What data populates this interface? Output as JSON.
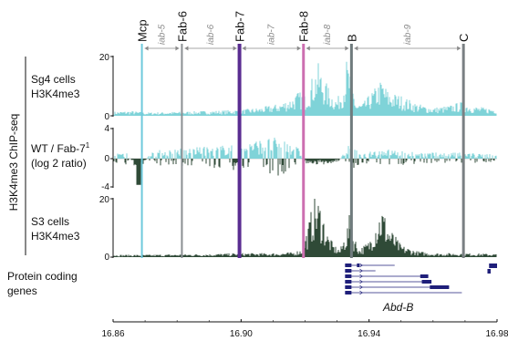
{
  "chart_data": {
    "type": "area",
    "y_axis_title": "H3K4me3 ChIP-seq",
    "x_ticks": [
      "16.86",
      "16.90",
      "16.94",
      "16.98"
    ],
    "x_tick_values": [
      16.86,
      16.9,
      16.94,
      16.98
    ],
    "xlim": [
      16.86,
      16.98
    ],
    "boundaries": [
      {
        "label": "Mcp",
        "x": 16.869,
        "color": "#6ec9dc"
      },
      {
        "label": "Fab-6",
        "x": 16.8815,
        "color": "#8a8f93"
      },
      {
        "label": "Fab-7",
        "x": 16.8995,
        "color": "#5a2d91"
      },
      {
        "label": "Fab-8",
        "x": 16.9195,
        "color": "#cc6fb0"
      },
      {
        "label": "B",
        "x": 16.9345,
        "color": "#6f7b7d"
      },
      {
        "label": "C",
        "x": 16.9695,
        "color": "#7a8083"
      }
    ],
    "domains": [
      {
        "label": "iab-5",
        "start": 16.869,
        "end": 16.8815
      },
      {
        "label": "iab-6",
        "start": 16.8815,
        "end": 16.8995
      },
      {
        "label": "iab-7",
        "start": 16.8995,
        "end": 16.9195
      },
      {
        "label": "iab-8",
        "start": 16.9195,
        "end": 16.9345
      },
      {
        "label": "iab-9",
        "start": 16.9345,
        "end": 16.9695
      }
    ],
    "tracks": [
      {
        "label_lines": [
          "Sg4 cells",
          "H3K4me3"
        ],
        "ylim": [
          0,
          20
        ],
        "y_ticks": [
          "20",
          "0"
        ],
        "color": "#7fd3d8",
        "profile": [
          [
            16.86,
            1.0
          ],
          [
            16.866,
            1.2
          ],
          [
            16.87,
            0.8
          ],
          [
            16.88,
            1.0
          ],
          [
            16.89,
            1.2
          ],
          [
            16.9,
            1.5
          ],
          [
            16.906,
            2.0
          ],
          [
            16.912,
            3.0
          ],
          [
            16.916,
            4.5
          ],
          [
            16.918,
            6.0
          ],
          [
            16.92,
            5.0
          ],
          [
            16.922,
            9.0
          ],
          [
            16.924,
            13.0
          ],
          [
            16.926,
            9.0
          ],
          [
            16.928,
            6.0
          ],
          [
            16.93,
            4.0
          ],
          [
            16.932,
            8.0
          ],
          [
            16.933,
            14.0
          ],
          [
            16.934,
            11.0
          ],
          [
            16.936,
            3.0
          ],
          [
            16.938,
            3.0
          ],
          [
            16.94,
            5.0
          ],
          [
            16.942,
            7.0
          ],
          [
            16.944,
            9.0
          ],
          [
            16.946,
            6.0
          ],
          [
            16.95,
            5.0
          ],
          [
            16.955,
            3.0
          ],
          [
            16.96,
            2.0
          ],
          [
            16.965,
            2.5
          ],
          [
            16.969,
            3.5
          ],
          [
            16.972,
            2.5
          ],
          [
            16.976,
            2.0
          ],
          [
            16.98,
            1.8
          ]
        ]
      },
      {
        "label_lines": [
          "WT  / Fab-7",
          "(log 2 ratio)"
        ],
        "label_sup": "1",
        "ylim": [
          -4,
          4
        ],
        "y_ticks": [
          "4",
          "0",
          "-4"
        ],
        "color_positive": "#7fd3d8",
        "color_negative": "#2f4a37",
        "profile": [
          [
            16.86,
            0.5
          ],
          [
            16.864,
            0.8
          ],
          [
            16.868,
            -1.5
          ],
          [
            16.872,
            0.8
          ],
          [
            16.88,
            1.0
          ],
          [
            16.89,
            1.2
          ],
          [
            16.9,
            1.5
          ],
          [
            16.908,
            2.0
          ],
          [
            16.914,
            2.2
          ],
          [
            16.918,
            1.0
          ],
          [
            16.92,
            -0.5
          ],
          [
            16.924,
            -0.6
          ],
          [
            16.93,
            -0.5
          ],
          [
            16.934,
            1.5
          ],
          [
            16.938,
            0.5
          ],
          [
            16.944,
            1.0
          ],
          [
            16.95,
            0.8
          ],
          [
            16.96,
            0.6
          ],
          [
            16.97,
            0.6
          ],
          [
            16.98,
            0.4
          ]
        ]
      },
      {
        "label_lines": [
          "S3 cells",
          "H3K4me3"
        ],
        "ylim": [
          0,
          20
        ],
        "y_ticks": [
          "20",
          "0"
        ],
        "color": "#2f4a37",
        "profile": [
          [
            16.86,
            0.6
          ],
          [
            16.87,
            0.6
          ],
          [
            16.88,
            0.7
          ],
          [
            16.89,
            0.8
          ],
          [
            16.9,
            1.0
          ],
          [
            16.91,
            1.0
          ],
          [
            16.916,
            1.2
          ],
          [
            16.919,
            2.0
          ],
          [
            16.921,
            8.0
          ],
          [
            16.923,
            16.0
          ],
          [
            16.925,
            13.0
          ],
          [
            16.927,
            6.0
          ],
          [
            16.929,
            3.0
          ],
          [
            16.931,
            2.0
          ],
          [
            16.933,
            7.0
          ],
          [
            16.934,
            11.0
          ],
          [
            16.935,
            6.0
          ],
          [
            16.937,
            2.0
          ],
          [
            16.94,
            4.0
          ],
          [
            16.942,
            9.0
          ],
          [
            16.944,
            13.0
          ],
          [
            16.946,
            8.0
          ],
          [
            16.95,
            3.0
          ],
          [
            16.955,
            1.5
          ],
          [
            16.96,
            1.0
          ],
          [
            16.97,
            1.0
          ],
          [
            16.98,
            0.8
          ]
        ]
      }
    ],
    "gene_track": {
      "label_lines": [
        "Protein coding",
        "genes"
      ],
      "gene_name": "Abd-B",
      "color": "#1f1f7a",
      "transcripts": [
        {
          "start": 16.9325,
          "end": 16.948,
          "exons": [
            [
              16.9325,
              16.9345
            ],
            [
              16.9362,
              16.937
            ]
          ]
        },
        {
          "start": 16.9325,
          "end": 16.942,
          "exons": [
            [
              16.9325,
              16.9345
            ]
          ]
        },
        {
          "start": 16.9325,
          "end": 16.9585,
          "exons": [
            [
              16.9325,
              16.9345
            ],
            [
              16.956,
              16.9585
            ]
          ]
        },
        {
          "start": 16.9325,
          "end": 16.9595,
          "exons": [
            [
              16.9325,
              16.9345
            ],
            [
              16.9565,
              16.9595
            ]
          ]
        },
        {
          "start": 16.9325,
          "end": 16.965,
          "exons": [
            [
              16.9325,
              16.9345
            ],
            [
              16.959,
              16.965
            ]
          ]
        },
        {
          "start": 16.9325,
          "end": 16.969,
          "exons": [
            [
              16.9325,
              16.9345
            ]
          ]
        }
      ],
      "extra_features": [
        {
          "start": 16.9775,
          "end": 16.98
        },
        {
          "start": 16.977,
          "end": 16.978
        }
      ]
    }
  }
}
